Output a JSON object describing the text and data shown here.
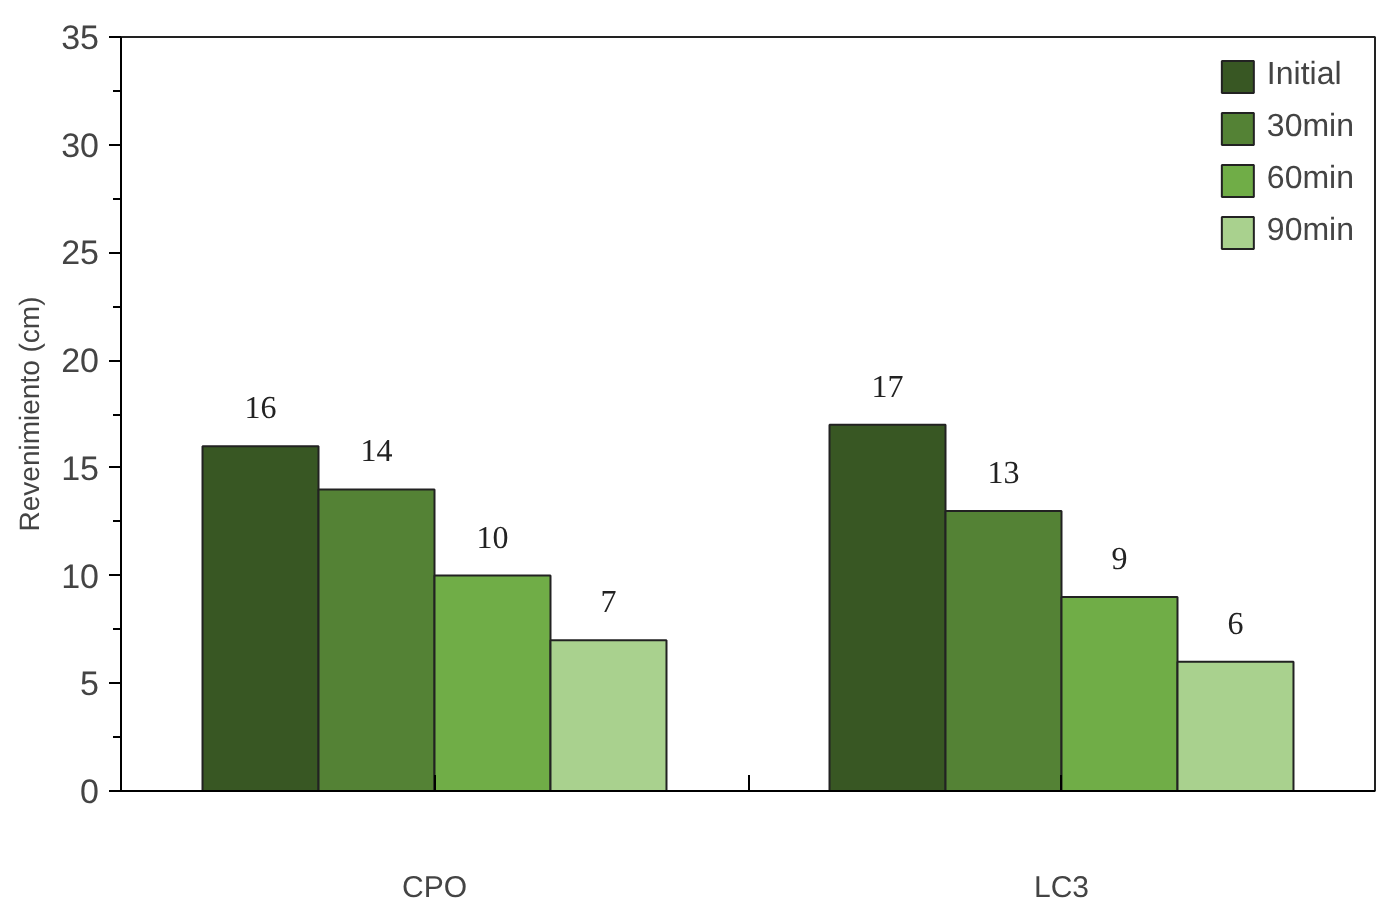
{
  "chart_data": {
    "type": "bar",
    "ylabel": "Revenimiento (cm)",
    "categories": [
      "CPO",
      "LC3"
    ],
    "series": [
      {
        "name": "Initial",
        "color": "#385723",
        "values": [
          16,
          17
        ]
      },
      {
        "name": "30min",
        "color": "#548235",
        "values": [
          14,
          13
        ]
      },
      {
        "name": "60min",
        "color": "#70ad47",
        "values": [
          10,
          9
        ]
      },
      {
        "name": "90min",
        "color": "#a9d18e",
        "values": [
          7,
          6
        ]
      }
    ],
    "ylim": [
      0,
      35
    ],
    "yticks": [
      0,
      5,
      10,
      15,
      20,
      25,
      30,
      35
    ],
    "grid": false,
    "legend": "top right",
    "data_labels": true
  }
}
